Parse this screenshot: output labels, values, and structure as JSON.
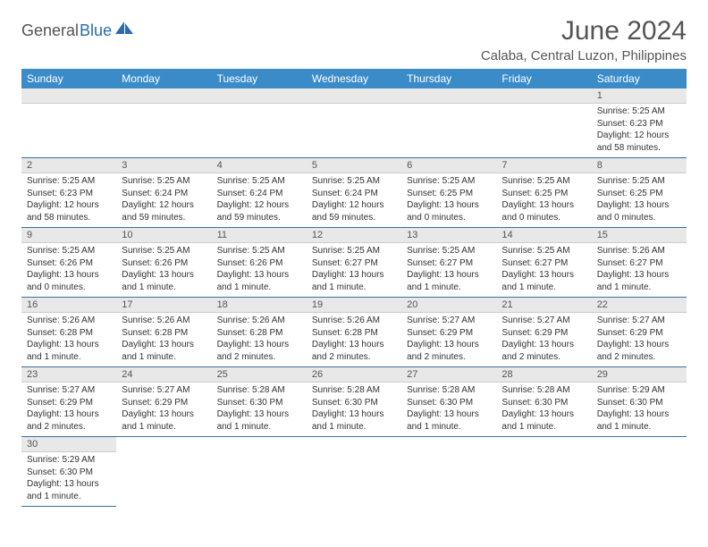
{
  "logo": {
    "part1": "General",
    "part2": "Blue"
  },
  "title": "June 2024",
  "location": "Calaba, Central Luzon, Philippines",
  "colors": {
    "header_bg": "#3b8bc9",
    "header_fg": "#ffffff",
    "row_border": "#3b6fa0",
    "daynum_bg": "#e8e8e8",
    "text": "#333333",
    "title_color": "#555555"
  },
  "day_headers": [
    "Sunday",
    "Monday",
    "Tuesday",
    "Wednesday",
    "Thursday",
    "Friday",
    "Saturday"
  ],
  "weeks": [
    [
      null,
      null,
      null,
      null,
      null,
      null,
      {
        "n": "1",
        "sr": "5:25 AM",
        "ss": "6:23 PM",
        "dl": "12 hours and 58 minutes."
      }
    ],
    [
      {
        "n": "2",
        "sr": "5:25 AM",
        "ss": "6:23 PM",
        "dl": "12 hours and 58 minutes."
      },
      {
        "n": "3",
        "sr": "5:25 AM",
        "ss": "6:24 PM",
        "dl": "12 hours and 59 minutes."
      },
      {
        "n": "4",
        "sr": "5:25 AM",
        "ss": "6:24 PM",
        "dl": "12 hours and 59 minutes."
      },
      {
        "n": "5",
        "sr": "5:25 AM",
        "ss": "6:24 PM",
        "dl": "12 hours and 59 minutes."
      },
      {
        "n": "6",
        "sr": "5:25 AM",
        "ss": "6:25 PM",
        "dl": "13 hours and 0 minutes."
      },
      {
        "n": "7",
        "sr": "5:25 AM",
        "ss": "6:25 PM",
        "dl": "13 hours and 0 minutes."
      },
      {
        "n": "8",
        "sr": "5:25 AM",
        "ss": "6:25 PM",
        "dl": "13 hours and 0 minutes."
      }
    ],
    [
      {
        "n": "9",
        "sr": "5:25 AM",
        "ss": "6:26 PM",
        "dl": "13 hours and 0 minutes."
      },
      {
        "n": "10",
        "sr": "5:25 AM",
        "ss": "6:26 PM",
        "dl": "13 hours and 1 minute."
      },
      {
        "n": "11",
        "sr": "5:25 AM",
        "ss": "6:26 PM",
        "dl": "13 hours and 1 minute."
      },
      {
        "n": "12",
        "sr": "5:25 AM",
        "ss": "6:27 PM",
        "dl": "13 hours and 1 minute."
      },
      {
        "n": "13",
        "sr": "5:25 AM",
        "ss": "6:27 PM",
        "dl": "13 hours and 1 minute."
      },
      {
        "n": "14",
        "sr": "5:25 AM",
        "ss": "6:27 PM",
        "dl": "13 hours and 1 minute."
      },
      {
        "n": "15",
        "sr": "5:26 AM",
        "ss": "6:27 PM",
        "dl": "13 hours and 1 minute."
      }
    ],
    [
      {
        "n": "16",
        "sr": "5:26 AM",
        "ss": "6:28 PM",
        "dl": "13 hours and 1 minute."
      },
      {
        "n": "17",
        "sr": "5:26 AM",
        "ss": "6:28 PM",
        "dl": "13 hours and 1 minute."
      },
      {
        "n": "18",
        "sr": "5:26 AM",
        "ss": "6:28 PM",
        "dl": "13 hours and 2 minutes."
      },
      {
        "n": "19",
        "sr": "5:26 AM",
        "ss": "6:28 PM",
        "dl": "13 hours and 2 minutes."
      },
      {
        "n": "20",
        "sr": "5:27 AM",
        "ss": "6:29 PM",
        "dl": "13 hours and 2 minutes."
      },
      {
        "n": "21",
        "sr": "5:27 AM",
        "ss": "6:29 PM",
        "dl": "13 hours and 2 minutes."
      },
      {
        "n": "22",
        "sr": "5:27 AM",
        "ss": "6:29 PM",
        "dl": "13 hours and 2 minutes."
      }
    ],
    [
      {
        "n": "23",
        "sr": "5:27 AM",
        "ss": "6:29 PM",
        "dl": "13 hours and 2 minutes."
      },
      {
        "n": "24",
        "sr": "5:27 AM",
        "ss": "6:29 PM",
        "dl": "13 hours and 1 minute."
      },
      {
        "n": "25",
        "sr": "5:28 AM",
        "ss": "6:30 PM",
        "dl": "13 hours and 1 minute."
      },
      {
        "n": "26",
        "sr": "5:28 AM",
        "ss": "6:30 PM",
        "dl": "13 hours and 1 minute."
      },
      {
        "n": "27",
        "sr": "5:28 AM",
        "ss": "6:30 PM",
        "dl": "13 hours and 1 minute."
      },
      {
        "n": "28",
        "sr": "5:28 AM",
        "ss": "6:30 PM",
        "dl": "13 hours and 1 minute."
      },
      {
        "n": "29",
        "sr": "5:29 AM",
        "ss": "6:30 PM",
        "dl": "13 hours and 1 minute."
      }
    ],
    [
      {
        "n": "30",
        "sr": "5:29 AM",
        "ss": "6:30 PM",
        "dl": "13 hours and 1 minute."
      },
      null,
      null,
      null,
      null,
      null,
      null
    ]
  ],
  "labels": {
    "sunrise": "Sunrise: ",
    "sunset": "Sunset: ",
    "daylight": "Daylight: "
  }
}
